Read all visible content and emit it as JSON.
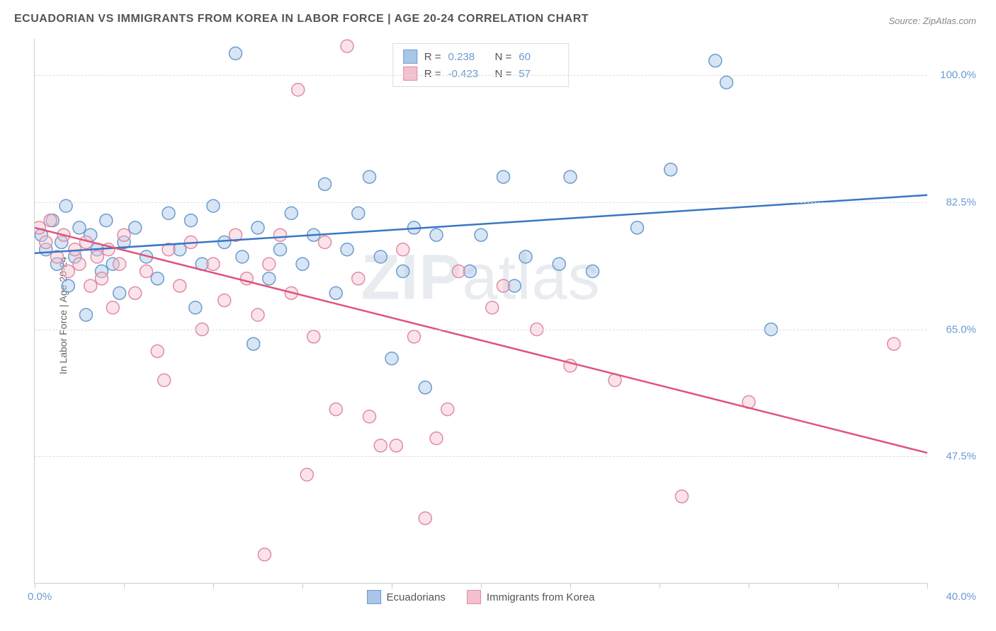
{
  "title": "ECUADORIAN VS IMMIGRANTS FROM KOREA IN LABOR FORCE | AGE 20-24 CORRELATION CHART",
  "source": "Source: ZipAtlas.com",
  "y_axis_label": "In Labor Force | Age 20-24",
  "watermark": {
    "bold": "ZIP",
    "rest": "atlas"
  },
  "chart": {
    "type": "scatter",
    "background_color": "#ffffff",
    "grid_color": "#dddddd",
    "axis_color": "#cccccc",
    "xlim": [
      0,
      40
    ],
    "ylim": [
      30,
      105
    ],
    "x_tick_positions": [
      0,
      4,
      8,
      12,
      16,
      20,
      24,
      28,
      32,
      36,
      40
    ],
    "y_gridlines": [
      47.5,
      65.0,
      82.5,
      100.0
    ],
    "y_tick_labels": [
      "47.5%",
      "65.0%",
      "82.5%",
      "100.0%"
    ],
    "x_min_label": "0.0%",
    "x_max_label": "40.0%",
    "marker_radius": 9,
    "marker_opacity": 0.45,
    "line_width": 2.5,
    "series": [
      {
        "name": "Ecuadorians",
        "color_fill": "#a9c6e8",
        "color_stroke": "#6b9bd1",
        "line_color": "#3a77c2",
        "R": "0.238",
        "N": "60",
        "trend": {
          "x1": 0,
          "y1": 75.5,
          "x2": 40,
          "y2": 83.5
        },
        "points": [
          [
            0.3,
            78
          ],
          [
            0.5,
            76
          ],
          [
            0.8,
            80
          ],
          [
            1.0,
            74
          ],
          [
            1.2,
            77
          ],
          [
            1.4,
            82
          ],
          [
            1.5,
            71
          ],
          [
            1.8,
            75
          ],
          [
            2.0,
            79
          ],
          [
            2.3,
            67
          ],
          [
            2.5,
            78
          ],
          [
            2.8,
            76
          ],
          [
            3.0,
            73
          ],
          [
            3.2,
            80
          ],
          [
            3.5,
            74
          ],
          [
            3.8,
            70
          ],
          [
            4.0,
            77
          ],
          [
            4.5,
            79
          ],
          [
            5.0,
            75
          ],
          [
            5.5,
            72
          ],
          [
            6.0,
            81
          ],
          [
            6.5,
            76
          ],
          [
            7.0,
            80
          ],
          [
            7.2,
            68
          ],
          [
            7.5,
            74
          ],
          [
            8.0,
            82
          ],
          [
            8.5,
            77
          ],
          [
            9.0,
            103
          ],
          [
            9.3,
            75
          ],
          [
            9.8,
            63
          ],
          [
            10.0,
            79
          ],
          [
            10.5,
            72
          ],
          [
            11.0,
            76
          ],
          [
            11.5,
            81
          ],
          [
            12.0,
            74
          ],
          [
            12.5,
            78
          ],
          [
            13.0,
            85
          ],
          [
            13.5,
            70
          ],
          [
            14.0,
            76
          ],
          [
            14.5,
            81
          ],
          [
            15.0,
            86
          ],
          [
            15.5,
            75
          ],
          [
            16.0,
            61
          ],
          [
            16.5,
            73
          ],
          [
            17.0,
            79
          ],
          [
            17.5,
            57
          ],
          [
            18.0,
            78
          ],
          [
            19.5,
            73
          ],
          [
            20.0,
            78
          ],
          [
            21.0,
            86
          ],
          [
            21.5,
            71
          ],
          [
            22.0,
            75
          ],
          [
            23.5,
            74
          ],
          [
            24.0,
            86
          ],
          [
            25.0,
            73
          ],
          [
            27.0,
            79
          ],
          [
            28.5,
            87
          ],
          [
            30.5,
            102
          ],
          [
            31.0,
            99
          ],
          [
            33.0,
            65
          ]
        ]
      },
      {
        "name": "Immigrants from Korea",
        "color_fill": "#f4c0ce",
        "color_stroke": "#e08ba5",
        "line_color": "#e0537b",
        "R": "-0.423",
        "N": "57",
        "trend": {
          "x1": 0,
          "y1": 79,
          "x2": 40,
          "y2": 48
        },
        "points": [
          [
            0.2,
            79
          ],
          [
            0.5,
            77
          ],
          [
            0.7,
            80
          ],
          [
            1.0,
            75
          ],
          [
            1.3,
            78
          ],
          [
            1.5,
            73
          ],
          [
            1.8,
            76
          ],
          [
            2.0,
            74
          ],
          [
            2.3,
            77
          ],
          [
            2.5,
            71
          ],
          [
            2.8,
            75
          ],
          [
            3.0,
            72
          ],
          [
            3.3,
            76
          ],
          [
            3.5,
            68
          ],
          [
            3.8,
            74
          ],
          [
            4.0,
            78
          ],
          [
            4.5,
            70
          ],
          [
            5.0,
            73
          ],
          [
            5.5,
            62
          ],
          [
            5.8,
            58
          ],
          [
            6.0,
            76
          ],
          [
            6.5,
            71
          ],
          [
            7.0,
            77
          ],
          [
            7.5,
            65
          ],
          [
            8.0,
            74
          ],
          [
            8.5,
            69
          ],
          [
            9.0,
            78
          ],
          [
            9.5,
            72
          ],
          [
            10.0,
            67
          ],
          [
            10.5,
            74
          ],
          [
            10.3,
            34
          ],
          [
            11.0,
            78
          ],
          [
            11.5,
            70
          ],
          [
            11.8,
            98
          ],
          [
            12.2,
            45
          ],
          [
            12.5,
            64
          ],
          [
            13.0,
            77
          ],
          [
            13.5,
            54
          ],
          [
            14.0,
            104
          ],
          [
            14.5,
            72
          ],
          [
            15.0,
            53
          ],
          [
            15.5,
            49
          ],
          [
            16.2,
            49
          ],
          [
            16.5,
            76
          ],
          [
            17.0,
            64
          ],
          [
            17.5,
            39
          ],
          [
            18.0,
            50
          ],
          [
            18.5,
            54
          ],
          [
            19.0,
            73
          ],
          [
            20.5,
            68
          ],
          [
            21.0,
            71
          ],
          [
            22.5,
            65
          ],
          [
            24.0,
            60
          ],
          [
            26.0,
            58
          ],
          [
            29.0,
            42
          ],
          [
            32.0,
            55
          ],
          [
            38.5,
            63
          ]
        ]
      }
    ]
  },
  "legend_top": {
    "r_label": "R =",
    "n_label": "N ="
  },
  "legend_bottom": {
    "items": [
      "Ecuadorians",
      "Immigrants from Korea"
    ]
  }
}
